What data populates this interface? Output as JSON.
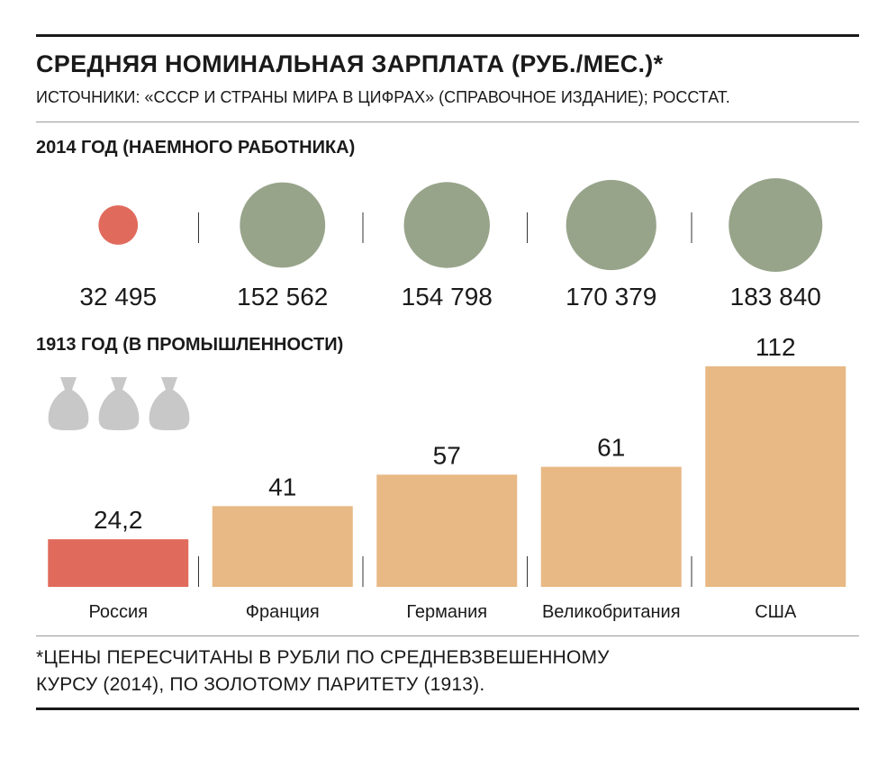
{
  "header": {
    "title": "СРЕДНЯЯ НОМИНАЛЬНАЯ ЗАРПЛАТА (РУБ./МЕС.)*",
    "sources": "ИСТОЧНИКИ: «СССР И СТРАНЫ МИРА В ЦИФРАХ» (СПРАВОЧНОЕ ИЗДАНИЕ); РОССТАТ."
  },
  "footnote": {
    "line1": "*ЦЕНЫ ПЕРЕСЧИТАНЫ В РУБЛИ ПО СРЕДНЕВЗВЕШЕННОМУ",
    "line2": "КУРСУ (2014), ПО ЗОЛОТОМУ ПАРИТЕТУ (1913)."
  },
  "colors": {
    "russia": "#e06b5c",
    "others_2014": "#97a48a",
    "others_1913": "#e8b985",
    "bag": "#c8c8c8"
  },
  "icons": [
    "money-bag-icon",
    "money-bag-icon",
    "money-bag-icon"
  ],
  "chart_data": [
    {
      "type": "bubble",
      "title": "2014 ГОД (НАЕМНОГО РАБОТНИКА)",
      "categories": [
        "Россия",
        "Франция",
        "Германия",
        "Великобритания",
        "США"
      ],
      "values": [
        32495,
        152562,
        154798,
        170379,
        183840
      ],
      "value_labels": [
        "32 495",
        "152 562",
        "154 798",
        "170 379",
        "183 840"
      ]
    },
    {
      "type": "bar",
      "title": "1913 ГОД (В ПРОМЫШЛЕННОСТИ)",
      "categories": [
        "Россия",
        "Франция",
        "Германия",
        "Великобритания",
        "США"
      ],
      "values": [
        24.2,
        41,
        57,
        61,
        112
      ],
      "value_labels": [
        "24,2",
        "41",
        "57",
        "61",
        "112"
      ]
    }
  ]
}
